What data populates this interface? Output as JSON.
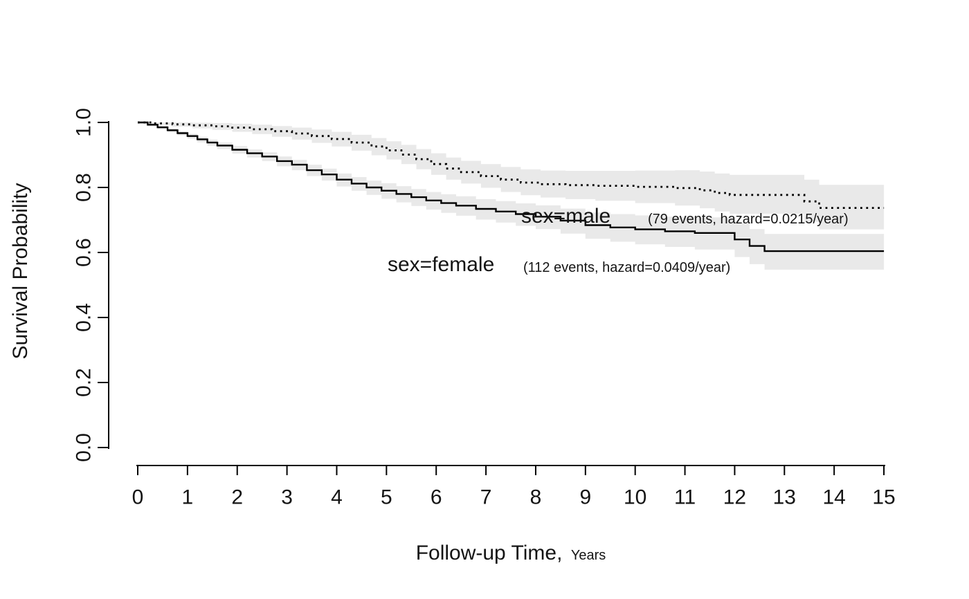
{
  "figure": {
    "background": "#ffffff",
    "text_color": "#141414",
    "axis_color": "#000000"
  },
  "chart_data": {
    "type": "line",
    "subtype": "kaplan-meier-step",
    "title": "",
    "xlabel": "Follow-up Time,",
    "xlabel_suffix": "Years",
    "ylabel": "Survival Probability",
    "xlim": [
      0,
      15
    ],
    "ylim": [
      0.0,
      1.0
    ],
    "x_ticks": [
      0,
      1,
      2,
      3,
      4,
      5,
      6,
      7,
      8,
      9,
      10,
      11,
      12,
      13,
      14,
      15
    ],
    "y_ticks": [
      "0.0",
      "0.2",
      "0.4",
      "0.6",
      "0.8",
      "1.0"
    ],
    "grid": false,
    "legend_position": "inline-annotations",
    "band_color": "#e9e9e9",
    "line_color": "#000000",
    "series": [
      {
        "name": "sex=male",
        "linestyle": "dotted",
        "events": 79,
        "hazard": "0.0215/year",
        "annotation": {
          "label": "sex=male",
          "detail": "(79 events, hazard=0.0215/year)"
        },
        "x": [
          0,
          0.3,
          0.7,
          1.1,
          1.5,
          1.9,
          2.3,
          2.7,
          3.1,
          3.5,
          3.9,
          4.3,
          4.7,
          5.0,
          5.3,
          5.6,
          5.9,
          6.2,
          6.5,
          6.9,
          7.3,
          7.7,
          8.1,
          8.6,
          9.2,
          10.0,
          10.8,
          11.3,
          11.6,
          11.9,
          13.4,
          13.7,
          15.0
        ],
        "s": [
          1.0,
          0.997,
          0.994,
          0.991,
          0.988,
          0.984,
          0.979,
          0.973,
          0.966,
          0.958,
          0.949,
          0.938,
          0.926,
          0.914,
          0.901,
          0.887,
          0.872,
          0.858,
          0.847,
          0.835,
          0.824,
          0.815,
          0.81,
          0.807,
          0.805,
          0.802,
          0.798,
          0.791,
          0.783,
          0.777,
          0.757,
          0.737,
          0.737
        ],
        "upper": [
          1.0,
          1.0,
          1.0,
          0.999,
          0.998,
          0.996,
          0.993,
          0.989,
          0.984,
          0.978,
          0.971,
          0.962,
          0.952,
          0.942,
          0.931,
          0.918,
          0.905,
          0.892,
          0.882,
          0.872,
          0.863,
          0.856,
          0.852,
          0.851,
          0.851,
          0.852,
          0.853,
          0.849,
          0.843,
          0.839,
          0.824,
          0.808,
          0.815
        ],
        "lower": [
          0.996,
          0.992,
          0.987,
          0.982,
          0.977,
          0.971,
          0.964,
          0.956,
          0.947,
          0.937,
          0.926,
          0.913,
          0.899,
          0.886,
          0.872,
          0.856,
          0.839,
          0.824,
          0.812,
          0.799,
          0.786,
          0.776,
          0.769,
          0.764,
          0.759,
          0.752,
          0.744,
          0.736,
          0.726,
          0.719,
          0.694,
          0.671,
          0.662
        ]
      },
      {
        "name": "sex=female",
        "linestyle": "solid",
        "events": 112,
        "hazard": "0.0409/year",
        "annotation": {
          "label": "sex=female",
          "detail": "(112 events, hazard=0.0409/year)"
        },
        "x": [
          0,
          0.2,
          0.4,
          0.6,
          0.8,
          1.0,
          1.2,
          1.4,
          1.6,
          1.9,
          2.2,
          2.5,
          2.8,
          3.1,
          3.4,
          3.7,
          4.0,
          4.3,
          4.6,
          4.9,
          5.2,
          5.5,
          5.8,
          6.1,
          6.4,
          6.8,
          7.2,
          7.6,
          8.0,
          8.5,
          9.0,
          9.5,
          10.0,
          10.6,
          11.2,
          12.0,
          12.3,
          12.6,
          15.0
        ],
        "s": [
          1.0,
          0.993,
          0.985,
          0.976,
          0.967,
          0.958,
          0.948,
          0.938,
          0.929,
          0.916,
          0.905,
          0.895,
          0.881,
          0.87,
          0.853,
          0.84,
          0.824,
          0.812,
          0.8,
          0.79,
          0.78,
          0.77,
          0.76,
          0.752,
          0.744,
          0.734,
          0.726,
          0.718,
          0.71,
          0.698,
          0.684,
          0.677,
          0.671,
          0.665,
          0.66,
          0.64,
          0.62,
          0.604,
          0.604
        ],
        "upper": [
          1.0,
          0.997,
          0.99,
          0.981,
          0.973,
          0.965,
          0.956,
          0.947,
          0.938,
          0.927,
          0.917,
          0.908,
          0.895,
          0.885,
          0.87,
          0.858,
          0.843,
          0.832,
          0.821,
          0.813,
          0.804,
          0.795,
          0.786,
          0.779,
          0.773,
          0.764,
          0.758,
          0.751,
          0.745,
          0.735,
          0.723,
          0.718,
          0.714,
          0.71,
          0.708,
          0.691,
          0.672,
          0.657,
          0.667
        ],
        "lower": [
          0.996,
          0.988,
          0.979,
          0.97,
          0.96,
          0.95,
          0.939,
          0.928,
          0.918,
          0.904,
          0.892,
          0.881,
          0.865,
          0.853,
          0.835,
          0.821,
          0.803,
          0.79,
          0.777,
          0.765,
          0.754,
          0.743,
          0.732,
          0.722,
          0.713,
          0.701,
          0.692,
          0.682,
          0.672,
          0.658,
          0.642,
          0.633,
          0.625,
          0.617,
          0.609,
          0.586,
          0.564,
          0.547,
          0.537
        ]
      }
    ]
  }
}
